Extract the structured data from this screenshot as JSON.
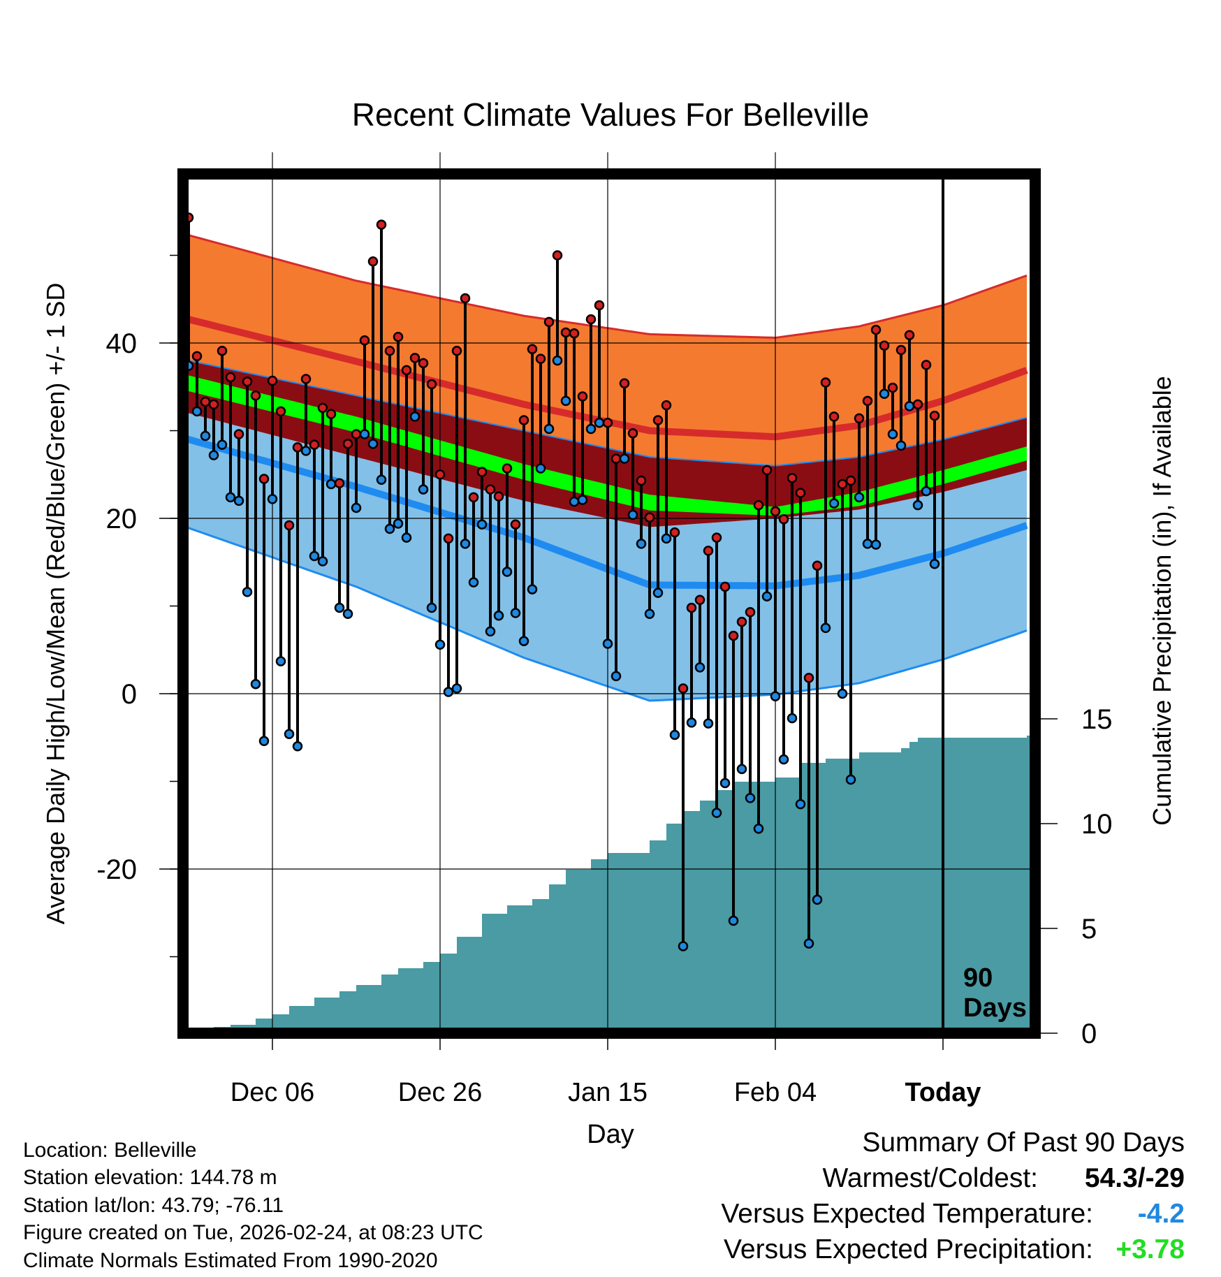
{
  "chart_data": {
    "type": "line",
    "title": "Recent Climate Values For Belleville",
    "xlabel": "Day",
    "ylabel_left": "Average Daily High/Low/Mean (Red/Blue/Green) +/- 1 SD",
    "ylabel_right": "Cumulative Precipitation (in), If Available",
    "x_range": [
      0,
      100
    ],
    "y_left_range": [
      -39,
      59
    ],
    "y_left_ticks": [
      "40",
      "20",
      "0",
      "-20"
    ],
    "y_left_tick_values": [
      40,
      20,
      0,
      -20
    ],
    "y_right_range": [
      0,
      41
    ],
    "y_right_ticks": [
      "15",
      "10",
      "5",
      "0"
    ],
    "y_right_tick_values": [
      15,
      10,
      5,
      0
    ],
    "x_ticks": [
      {
        "label": "Dec 06",
        "day": 10
      },
      {
        "label": "Dec 26",
        "day": 30
      },
      {
        "label": "Jan 15",
        "day": 50
      },
      {
        "label": "Feb 04",
        "day": 70
      },
      {
        "label": "Today",
        "day": 90
      }
    ],
    "today_day": 90,
    "today_annotation": "90 Days",
    "normals": {
      "day": [
        0,
        20,
        40,
        55,
        70,
        80,
        90,
        100
      ],
      "high_plus_sd": [
        52.3,
        47.1,
        43.1,
        41.0,
        40.6,
        41.9,
        44.3,
        47.7
      ],
      "high_mean": [
        42.7,
        37.9,
        33.0,
        30.0,
        29.3,
        30.6,
        33.4,
        36.9
      ],
      "high_minus_sd": [
        38.0,
        34.0,
        30.0,
        27.0,
        26.0,
        27.0,
        29.0,
        31.5
      ],
      "mean_upper": [
        36.3,
        31.6,
        26.2,
        22.7,
        21.3,
        23.0,
        25.5,
        28.2
      ],
      "mean_lower": [
        34.5,
        29.8,
        24.4,
        20.9,
        20.3,
        21.4,
        23.9,
        26.6
      ],
      "low_plus_sd": [
        32.0,
        27.0,
        22.0,
        19.0,
        20.0,
        21.0,
        23.0,
        25.5
      ],
      "low_mean": [
        29.0,
        23.6,
        17.8,
        12.4,
        12.3,
        13.5,
        16.0,
        19.2
      ],
      "low_minus_sd": [
        18.9,
        12.2,
        4.1,
        -0.8,
        -0.1,
        1.2,
        3.9,
        7.2
      ]
    },
    "daily": [
      [
        0,
        54.3,
        37.4
      ],
      [
        1,
        38.5,
        32.2
      ],
      [
        2,
        33.3,
        29.4
      ],
      [
        3,
        33.0,
        27.2
      ],
      [
        4,
        39.1,
        28.4
      ],
      [
        5,
        36.1,
        22.4
      ],
      [
        6,
        29.6,
        22.0
      ],
      [
        7,
        35.6,
        11.6
      ],
      [
        8,
        34.0,
        1.1
      ],
      [
        9,
        24.5,
        -5.4
      ],
      [
        10,
        35.7,
        22.2
      ],
      [
        11,
        32.2,
        3.7
      ],
      [
        12,
        19.2,
        -4.6
      ],
      [
        13,
        28.1,
        -6.0
      ],
      [
        14,
        35.9,
        27.7
      ],
      [
        15,
        28.4,
        15.7
      ],
      [
        16,
        32.6,
        15.1
      ],
      [
        17,
        31.9,
        23.9
      ],
      [
        18,
        24.0,
        9.8
      ],
      [
        19,
        28.5,
        9.1
      ],
      [
        20,
        29.6,
        21.2
      ],
      [
        21,
        40.3,
        29.6
      ],
      [
        22,
        49.3,
        28.5
      ],
      [
        23,
        53.5,
        24.4
      ],
      [
        24,
        39.1,
        18.8
      ],
      [
        25,
        40.7,
        19.4
      ],
      [
        26,
        36.9,
        17.8
      ],
      [
        27,
        38.3,
        31.6
      ],
      [
        28,
        37.7,
        23.3
      ],
      [
        29,
        35.3,
        9.8
      ],
      [
        30,
        25.0,
        5.6
      ],
      [
        31,
        17.7,
        0.2
      ],
      [
        32,
        39.1,
        0.6
      ],
      [
        33,
        45.1,
        17.1
      ],
      [
        34,
        22.4,
        12.7
      ],
      [
        35,
        25.3,
        19.3
      ],
      [
        36,
        23.3,
        7.1
      ],
      [
        37,
        22.5,
        8.9
      ],
      [
        38,
        25.7,
        13.9
      ],
      [
        39,
        19.3,
        9.2
      ],
      [
        40,
        31.2,
        6.0
      ],
      [
        41,
        39.3,
        11.9
      ],
      [
        42,
        38.2,
        25.7
      ],
      [
        43,
        42.4,
        30.2
      ],
      [
        44,
        50.0,
        38.0
      ],
      [
        45,
        41.2,
        33.4
      ],
      [
        46,
        41.1,
        21.9
      ],
      [
        47,
        33.9,
        22.1
      ],
      [
        48,
        42.7,
        30.2
      ],
      [
        49,
        44.3,
        30.9
      ],
      [
        50,
        30.9,
        5.7
      ],
      [
        51,
        26.8,
        2.0
      ],
      [
        52,
        35.4,
        26.8
      ],
      [
        53,
        29.7,
        20.4
      ],
      [
        54,
        24.3,
        17.1
      ],
      [
        55,
        20.1,
        9.1
      ],
      [
        56,
        31.2,
        11.5
      ],
      [
        57,
        32.9,
        17.7
      ],
      [
        58,
        18.4,
        -4.7
      ],
      [
        59,
        0.6,
        -28.8
      ],
      [
        60,
        9.8,
        -3.3
      ],
      [
        61,
        10.7,
        3.0
      ],
      [
        62,
        16.3,
        -3.4
      ],
      [
        63,
        17.8,
        -13.6
      ],
      [
        64,
        12.2,
        -10.2
      ],
      [
        65,
        6.6,
        -25.9
      ],
      [
        66,
        8.2,
        -8.6
      ],
      [
        67,
        9.3,
        -11.9
      ],
      [
        68,
        21.5,
        -15.4
      ],
      [
        69,
        25.5,
        11.1
      ],
      [
        70,
        20.8,
        -0.3
      ],
      [
        71,
        19.9,
        -7.5
      ],
      [
        72,
        24.6,
        -2.8
      ],
      [
        73,
        22.9,
        -12.6
      ],
      [
        74,
        1.8,
        -28.5
      ],
      [
        75,
        14.6,
        -23.5
      ],
      [
        76,
        35.5,
        7.5
      ],
      [
        77,
        31.6,
        21.7
      ],
      [
        78,
        23.9,
        0.0
      ],
      [
        79,
        24.3,
        -9.8
      ],
      [
        80,
        31.4,
        22.4
      ],
      [
        81,
        33.4,
        17.1
      ],
      [
        82,
        41.5,
        17.0
      ],
      [
        83,
        39.7,
        34.2
      ],
      [
        84,
        34.9,
        29.6
      ],
      [
        85,
        39.2,
        28.3
      ],
      [
        86,
        40.9,
        32.8
      ],
      [
        87,
        33.0,
        21.5
      ],
      [
        88,
        37.5,
        23.1
      ],
      [
        89,
        31.7,
        14.8
      ]
    ],
    "precip": {
      "day": [
        0,
        3,
        5,
        8,
        10,
        12,
        15,
        18,
        20,
        23,
        25,
        28,
        30,
        32,
        35,
        38,
        41,
        43,
        45,
        48,
        50,
        55,
        57,
        59,
        61,
        63,
        65,
        70,
        73,
        76,
        80,
        85,
        86,
        87,
        100
      ],
      "value": [
        0.0,
        0.3,
        0.4,
        0.7,
        0.9,
        1.3,
        1.7,
        2.0,
        2.3,
        2.8,
        3.1,
        3.4,
        3.8,
        4.6,
        5.7,
        6.1,
        6.4,
        7.1,
        7.8,
        8.3,
        8.6,
        9.2,
        10.0,
        10.6,
        11.1,
        11.6,
        12.0,
        12.2,
        12.9,
        13.1,
        13.4,
        13.6,
        13.9,
        14.1,
        14.2
      ]
    }
  },
  "info": {
    "location": "Location: Belleville",
    "elevation": "Station elevation: 144.78 m",
    "latlon": "Station lat/lon: 43.79; -76.11",
    "created": "Figure created on Tue, 2026-02-24, at 08:23 UTC",
    "normals": "Climate Normals Estimated From 1990-2020"
  },
  "summary": {
    "heading": "Summary Of Past 90 Days",
    "warmest_label": "Warmest/Coldest:",
    "warmest_value": "54.3/-29",
    "temp_label": "Versus Expected Temperature:",
    "temp_value": "-4.2",
    "precip_label": "Versus Expected Precipitation:",
    "precip_value": "+3.78"
  },
  "colors": {
    "high_band": "#f47a30",
    "high_mean": "#d62b2b",
    "mean_band": "#8b0d14",
    "mean_line": "#00ff00",
    "low_band": "#82c0e8",
    "low_mean": "#1f8bf0",
    "precip": "#4a9ba3",
    "high_dot": "#d32020",
    "low_dot": "#1f88e0",
    "temp_value": "#1f88e0",
    "precip_value": "#22dd22"
  }
}
